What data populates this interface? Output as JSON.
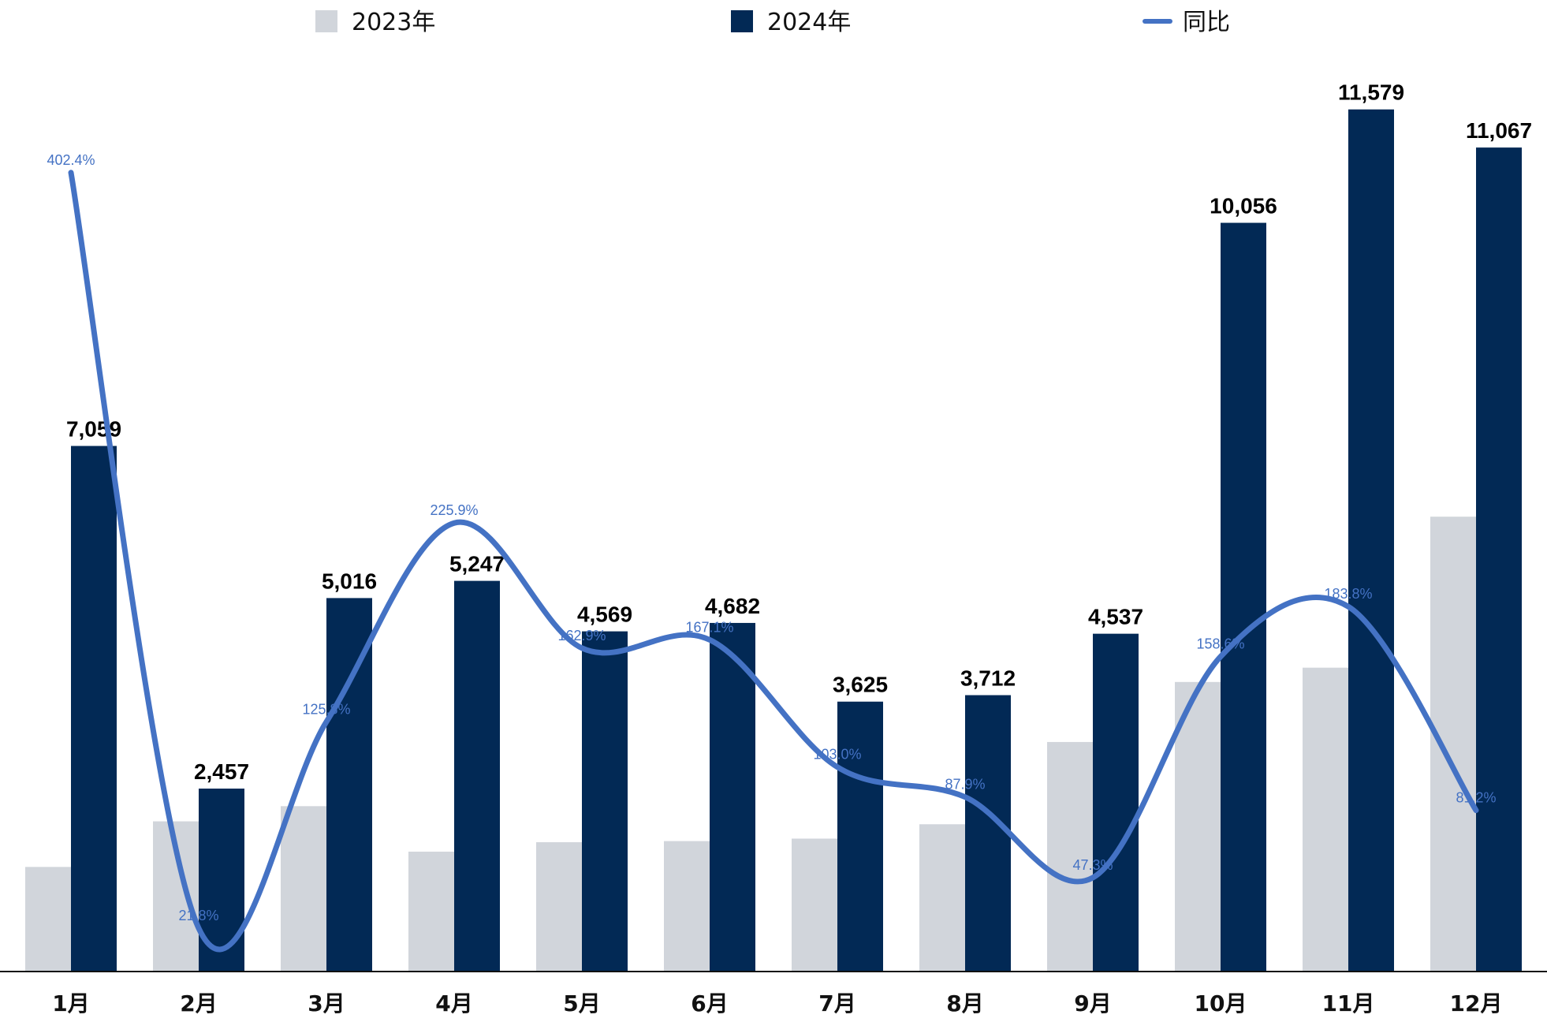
{
  "chart_data": {
    "type": "bar",
    "categories": [
      "1月",
      "2月",
      "3月",
      "4月",
      "5月",
      "6月",
      "7月",
      "8月",
      "9月",
      "10月",
      "11月",
      "12月"
    ],
    "series": [
      {
        "name": "2023年",
        "type": "bar",
        "values": [
          1405,
          2017,
          2221,
          1610,
          1737,
          1752,
          1785,
          1978,
          3083,
          3889,
          4081,
          6109
        ],
        "color": "#D1D5DB"
      },
      {
        "name": "2024年",
        "type": "bar",
        "values": [
          7059,
          2457,
          5016,
          5247,
          4569,
          4682,
          3625,
          3712,
          4537,
          10056,
          11579,
          11067
        ],
        "labels": [
          "7,059",
          "2,457",
          "5,016",
          "5,247",
          "4,569",
          "4,682",
          "3,625",
          "3,712",
          "4,537",
          "10,056",
          "11,579",
          "11,067"
        ],
        "color": "#022955"
      },
      {
        "name": "同比",
        "type": "line",
        "axis": "secondary",
        "values": [
          402.4,
          21.8,
          125.8,
          225.9,
          162.9,
          167.1,
          103.0,
          87.9,
          47.3,
          158.6,
          183.8,
          81.2
        ],
        "labels": [
          "402.4%",
          "21.8%",
          "125.8%",
          "225.9%",
          "162.9%",
          "167.1%",
          "103.0%",
          "87.9%",
          "47.3%",
          "158.6%",
          "183.8%",
          "81.2%"
        ],
        "color": "#4472C4"
      }
    ],
    "ylim": [
      0,
      12000
    ],
    "y2lim": [
      0,
      450
    ],
    "legend": "top",
    "grid": false
  }
}
